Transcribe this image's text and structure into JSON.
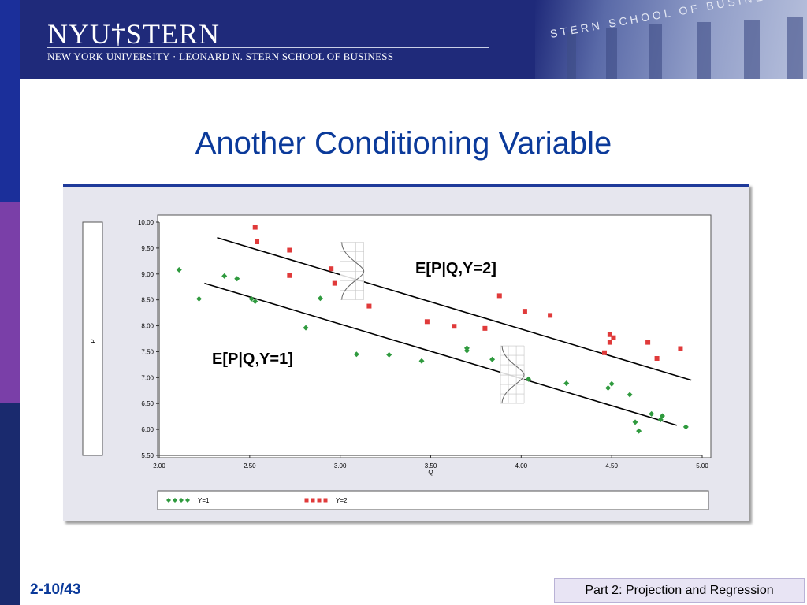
{
  "header": {
    "logo_main": "NYU†STERN",
    "logo_sub": "NEW YORK UNIVERSITY · LEONARD N. STERN SCHOOL OF BUSINESS",
    "photo_text": "STERN SCHOOL OF BUSINESS"
  },
  "slide": {
    "title": "Another Conditioning Variable",
    "page_number": "2-10/43",
    "footer": "Part 2: Projection and Regression"
  },
  "chart_data": {
    "type": "scatter",
    "xlabel": "Q",
    "ylabel": "P",
    "xlim": [
      2.0,
      5.0
    ],
    "ylim": [
      5.5,
      10.0
    ],
    "x_ticks": [
      "2.00",
      "2.50",
      "3.00",
      "3.50",
      "4.00",
      "4.50",
      "5.00"
    ],
    "y_ticks": [
      "10.00",
      "9.50",
      "9.00",
      "8.50",
      "8.00",
      "7.50",
      "7.00",
      "6.50",
      "6.00",
      "5.50"
    ],
    "legend_position": "bottom",
    "series": [
      {
        "name": "Y=1",
        "color": "#2f9a3e",
        "marker": "diamond",
        "points": [
          [
            2.11,
            9.08
          ],
          [
            2.22,
            8.52
          ],
          [
            2.36,
            8.96
          ],
          [
            2.43,
            8.91
          ],
          [
            2.51,
            8.52
          ],
          [
            2.53,
            8.47
          ],
          [
            2.81,
            7.96
          ],
          [
            2.89,
            8.53
          ],
          [
            3.09,
            7.45
          ],
          [
            3.27,
            7.44
          ],
          [
            3.45,
            7.32
          ],
          [
            3.7,
            7.57
          ],
          [
            3.7,
            7.52
          ],
          [
            3.84,
            7.35
          ],
          [
            4.04,
            6.97
          ],
          [
            4.25,
            6.89
          ],
          [
            4.48,
            6.8
          ],
          [
            4.5,
            6.88
          ],
          [
            4.6,
            6.67
          ],
          [
            4.63,
            6.14
          ],
          [
            4.65,
            5.97
          ],
          [
            4.72,
            6.3
          ],
          [
            4.77,
            6.19
          ],
          [
            4.78,
            6.26
          ],
          [
            4.91,
            6.05
          ]
        ]
      },
      {
        "name": "Y=2",
        "color": "#e03a3a",
        "marker": "square",
        "points": [
          [
            2.53,
            9.9
          ],
          [
            2.54,
            9.62
          ],
          [
            2.72,
            9.46
          ],
          [
            2.72,
            8.97
          ],
          [
            2.95,
            9.1
          ],
          [
            2.97,
            8.82
          ],
          [
            3.16,
            8.38
          ],
          [
            3.48,
            8.08
          ],
          [
            3.63,
            7.99
          ],
          [
            3.8,
            7.95
          ],
          [
            3.88,
            8.58
          ],
          [
            4.02,
            8.28
          ],
          [
            4.16,
            8.2
          ],
          [
            4.46,
            7.48
          ],
          [
            4.49,
            7.68
          ],
          [
            4.49,
            7.83
          ],
          [
            4.51,
            7.77
          ],
          [
            4.7,
            7.68
          ],
          [
            4.75,
            7.37
          ],
          [
            4.88,
            7.56
          ]
        ]
      }
    ],
    "lines": [
      {
        "name": "E[P|Q,Y=2]",
        "x": [
          2.32,
          4.94
        ],
        "y": [
          9.7,
          6.95
        ]
      },
      {
        "name": "E[P|Q,Y=1]",
        "x": [
          2.25,
          4.86
        ],
        "y": [
          8.82,
          6.08
        ]
      }
    ],
    "annotations": {
      "y2": "E[P|Q,Y=2]",
      "y1": "E[P|Q,Y=1]"
    }
  }
}
